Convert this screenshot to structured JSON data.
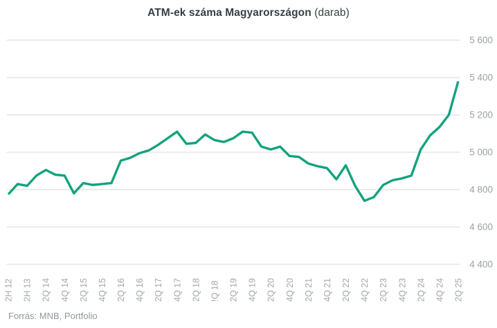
{
  "title": {
    "main": "ATM-ek száma Magyarországon",
    "unit": "(darab)"
  },
  "footer": {
    "source": "Forrás: MNB, Portfolio"
  },
  "colors": {
    "line": "#12A27E",
    "grid": "#d7d7d7",
    "title_text": "#363f45",
    "axis_text": "#9aa1a6",
    "source_text": "#8f979c",
    "background": "#ffffff"
  },
  "chart_data": {
    "type": "line",
    "title": "ATM-ek száma Magyarországon (darab)",
    "series_name": "ATM-ek száma",
    "xlabel": "",
    "ylabel": "darab",
    "ylim": [
      4400,
      5600
    ],
    "grid": true,
    "legend_position": "none",
    "y_ticks": [
      5600,
      5400,
      5200,
      5000,
      4800,
      4600,
      4400
    ],
    "y_tick_labels": [
      "5 600",
      "5 400",
      "5 200",
      "5 000",
      "4 800",
      "4 600",
      "4 400"
    ],
    "x_tick_labels": [
      "2H 12",
      "2H 13",
      "2Q 14",
      "4Q 14",
      "2Q 15",
      "4Q 15",
      "2Q 16",
      "4Q 16",
      "2Q 17",
      "4Q 17",
      "2Q 18",
      "!Q 18",
      "2Q 19",
      "4Q 19",
      "2Q 20",
      "4Q 20",
      "2Q 21",
      "4Q 21",
      "2Q 22",
      "4Q 22",
      "2Q 23",
      "4Q 23",
      "2Q 24",
      "4Q 24",
      "2Q 25"
    ],
    "points_per_label": 2,
    "values": [
      4775,
      4830,
      4820,
      4875,
      4905,
      4880,
      4875,
      4780,
      4835,
      4825,
      4830,
      4835,
      4955,
      4970,
      4995,
      5010,
      5040,
      5075,
      5110,
      5045,
      5050,
      5095,
      5065,
      5055,
      5075,
      5110,
      5105,
      5030,
      5015,
      5030,
      4980,
      4975,
      4940,
      4925,
      4915,
      4855,
      4930,
      4820,
      4740,
      4760,
      4825,
      4850,
      4860,
      4875,
      5015,
      5090,
      5135,
      5200,
      5380
    ]
  }
}
